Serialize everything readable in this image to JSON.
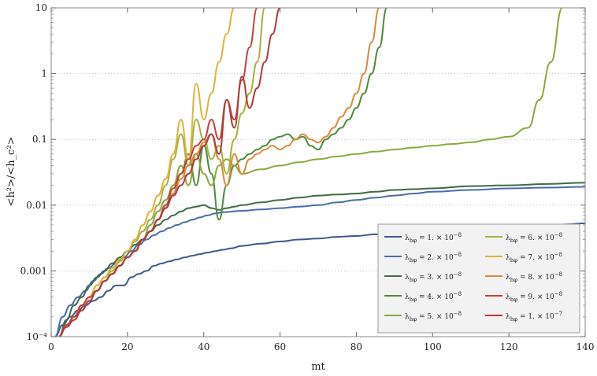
{
  "chart_data": {
    "type": "line",
    "title": "",
    "xlabel": "mt",
    "ylabel": "<h²>/<h_c²>",
    "xlim": [
      0,
      140
    ],
    "ylim": [
      0.0001,
      10
    ],
    "yscale": "log",
    "grid": "horizontal dotted at decades",
    "legend_position": "bottom-right",
    "x_ticks": [
      0,
      20,
      40,
      60,
      80,
      100,
      120,
      140
    ],
    "x_tick_labels": [
      "0",
      "20",
      "40",
      "60",
      "80",
      "100",
      "120",
      "140"
    ],
    "y_ticks": [
      0.0001,
      0.001,
      0.01,
      0.1,
      1,
      10
    ],
    "y_tick_labels": [
      "10⁻⁴",
      "0.001",
      "0.01",
      "0.1",
      "1",
      "10"
    ],
    "series": [
      {
        "name": "λ_hφ = 1. × 10⁻⁸",
        "label_main": "= 1. × 10",
        "label_exp": "−8",
        "color": "#3e5a8c",
        "x": [
          1,
          3,
          5,
          7,
          9,
          11,
          13,
          15,
          17,
          19,
          21,
          23,
          25,
          27,
          29,
          31,
          33,
          35,
          37,
          39,
          41,
          43,
          45,
          47,
          50,
          55,
          60,
          65,
          70,
          75,
          80,
          85,
          90,
          95,
          100,
          105,
          110,
          115,
          120,
          125,
          130,
          135,
          140
        ],
        "y": [
          0.0001,
          0.00015,
          0.0002,
          0.00025,
          0.0003,
          0.00035,
          0.0004,
          0.0005,
          0.0006,
          0.0006,
          0.0008,
          0.0009,
          0.001,
          0.0012,
          0.0013,
          0.0014,
          0.0015,
          0.0016,
          0.0017,
          0.0018,
          0.0019,
          0.002,
          0.0021,
          0.0022,
          0.0024,
          0.0026,
          0.0028,
          0.003,
          0.0031,
          0.0033,
          0.0034,
          0.0036,
          0.0037,
          0.0039,
          0.004,
          0.0042,
          0.0043,
          0.0045,
          0.0046,
          0.0048,
          0.0049,
          0.0051,
          0.0053
        ]
      },
      {
        "name": "λ_hφ = 2. × 10⁻⁸",
        "label_main": "= 2. × 10",
        "label_exp": "−8",
        "color": "#4a6da8",
        "x": [
          1,
          3,
          5,
          7,
          9,
          11,
          13,
          15,
          17,
          19,
          21,
          23,
          25,
          27,
          29,
          31,
          33,
          35,
          37,
          39,
          41,
          43,
          45,
          50,
          55,
          60,
          65,
          70,
          75,
          80,
          85,
          90,
          95,
          100,
          110,
          120,
          130,
          140
        ],
        "y": [
          0.0001,
          0.0002,
          0.0003,
          0.0004,
          0.0005,
          0.0007,
          0.0009,
          0.0011,
          0.0013,
          0.0016,
          0.002,
          0.0025,
          0.003,
          0.0035,
          0.004,
          0.0045,
          0.005,
          0.0055,
          0.006,
          0.0065,
          0.007,
          0.0075,
          0.0078,
          0.0082,
          0.0086,
          0.009,
          0.0095,
          0.01,
          0.011,
          0.012,
          0.013,
          0.014,
          0.015,
          0.016,
          0.017,
          0.018,
          0.0185,
          0.019
        ]
      },
      {
        "name": "λ_hφ = 3. × 10⁻⁸",
        "label_main": "= 3. × 10",
        "label_exp": "−8",
        "color": "#3f6a47",
        "x": [
          2,
          4,
          6,
          8,
          10,
          12,
          14,
          16,
          18,
          20,
          22,
          24,
          26,
          28,
          30,
          32,
          34,
          36,
          38,
          40,
          42,
          44,
          46,
          48,
          50,
          55,
          60,
          65,
          70,
          75,
          80,
          85,
          90,
          95,
          100,
          110,
          120,
          130,
          140
        ],
        "y": [
          0.0001,
          0.00018,
          0.0003,
          0.0004,
          0.0006,
          0.0008,
          0.001,
          0.0013,
          0.0016,
          0.002,
          0.0025,
          0.003,
          0.004,
          0.005,
          0.006,
          0.007,
          0.008,
          0.009,
          0.0095,
          0.01,
          0.009,
          0.0085,
          0.009,
          0.0095,
          0.01,
          0.011,
          0.012,
          0.013,
          0.014,
          0.0145,
          0.015,
          0.016,
          0.017,
          0.0175,
          0.018,
          0.0195,
          0.02,
          0.021,
          0.022
        ]
      },
      {
        "name": "λ_hφ = 4. × 10⁻⁸",
        "label_main": "= 4. × 10",
        "label_exp": "−8",
        "color": "#4e8a3e",
        "x": [
          2,
          4,
          6,
          8,
          10,
          12,
          14,
          16,
          18,
          20,
          22,
          24,
          26,
          28,
          30,
          32,
          34,
          36,
          38,
          40,
          42,
          44,
          46,
          48,
          50,
          52,
          54,
          56,
          58,
          60,
          62,
          64,
          66,
          68,
          70,
          72,
          74,
          76,
          78,
          80,
          82,
          84,
          86,
          88
        ],
        "y": [
          0.0001,
          0.00015,
          0.0002,
          0.0003,
          0.0004,
          0.0005,
          0.0007,
          0.0009,
          0.0012,
          0.0016,
          0.002,
          0.003,
          0.004,
          0.006,
          0.009,
          0.015,
          0.03,
          0.06,
          0.02,
          0.08,
          0.03,
          0.006,
          0.02,
          0.04,
          0.05,
          0.06,
          0.07,
          0.08,
          0.1,
          0.11,
          0.12,
          0.1,
          0.11,
          0.08,
          0.07,
          0.1,
          0.12,
          0.15,
          0.2,
          0.3,
          0.5,
          1.0,
          2.5,
          10
        ]
      },
      {
        "name": "λ_hφ = 5. × 10⁻⁸",
        "label_main": "= 5. × 10",
        "label_exp": "−8",
        "color": "#8aa83e",
        "x": [
          2,
          4,
          6,
          8,
          10,
          12,
          14,
          16,
          18,
          20,
          22,
          24,
          26,
          28,
          30,
          32,
          34,
          36,
          38,
          40,
          42,
          44,
          46,
          48,
          50,
          55,
          60,
          65,
          70,
          75,
          80,
          85,
          90,
          95,
          100,
          105,
          110,
          115,
          120,
          125,
          128,
          131,
          134
        ],
        "y": [
          0.0001,
          0.00015,
          0.0002,
          0.0003,
          0.0004,
          0.0005,
          0.0007,
          0.0009,
          0.0012,
          0.0016,
          0.002,
          0.003,
          0.005,
          0.008,
          0.012,
          0.02,
          0.04,
          0.02,
          0.06,
          0.03,
          0.02,
          0.04,
          0.05,
          0.04,
          0.03,
          0.035,
          0.04,
          0.045,
          0.05,
          0.055,
          0.06,
          0.065,
          0.07,
          0.075,
          0.08,
          0.085,
          0.09,
          0.1,
          0.11,
          0.15,
          0.4,
          1.5,
          10
        ]
      },
      {
        "name": "λ_hφ = 6. × 10⁻⁸",
        "label_main": "= 6. × 10",
        "label_exp": "−8",
        "color": "#a8b040",
        "x": [
          2,
          4,
          6,
          8,
          10,
          12,
          14,
          16,
          18,
          20,
          22,
          24,
          26,
          28,
          30,
          32,
          34,
          36,
          38,
          40,
          42,
          44,
          46,
          48,
          50,
          52,
          54,
          56
        ],
        "y": [
          0.0001,
          0.00015,
          0.0002,
          0.0003,
          0.0004,
          0.0006,
          0.0008,
          0.001,
          0.0014,
          0.002,
          0.0028,
          0.004,
          0.006,
          0.01,
          0.02,
          0.05,
          0.12,
          0.04,
          0.2,
          0.1,
          0.05,
          0.08,
          0.03,
          0.1,
          0.25,
          0.5,
          1.5,
          10
        ]
      },
      {
        "name": "λ_hφ = 7. × 10⁻⁸",
        "label_main": "= 7. × 10",
        "label_exp": "−8",
        "color": "#e0b23a",
        "x": [
          2,
          4,
          6,
          8,
          10,
          12,
          14,
          16,
          18,
          20,
          22,
          24,
          26,
          28,
          30,
          32,
          34,
          36,
          38,
          40,
          42,
          44,
          46,
          48
        ],
        "y": [
          0.0001,
          0.00015,
          0.0002,
          0.0003,
          0.0004,
          0.0006,
          0.0008,
          0.0011,
          0.0015,
          0.002,
          0.003,
          0.005,
          0.008,
          0.014,
          0.025,
          0.06,
          0.2,
          0.05,
          0.7,
          0.2,
          0.5,
          1.5,
          4,
          10
        ]
      },
      {
        "name": "λ_hφ = 8. × 10⁻⁸",
        "label_main": "= 8. × 10",
        "label_exp": "−8",
        "color": "#d98a3c",
        "x": [
          2,
          4,
          6,
          8,
          10,
          12,
          14,
          16,
          18,
          20,
          22,
          24,
          26,
          28,
          30,
          32,
          34,
          36,
          38,
          40,
          42,
          44,
          46,
          48,
          50,
          52,
          54,
          56,
          58,
          60,
          62,
          64,
          66,
          68,
          70,
          72,
          74,
          76,
          78,
          80,
          82,
          84,
          86
        ],
        "y": [
          0.0001,
          0.00015,
          0.0002,
          0.0003,
          0.0004,
          0.0005,
          0.0007,
          0.0009,
          0.0012,
          0.0016,
          0.002,
          0.003,
          0.004,
          0.006,
          0.01,
          0.015,
          0.025,
          0.04,
          0.06,
          0.09,
          0.12,
          0.05,
          0.02,
          0.06,
          0.03,
          0.05,
          0.06,
          0.07,
          0.08,
          0.07,
          0.08,
          0.1,
          0.12,
          0.1,
          0.09,
          0.11,
          0.15,
          0.22,
          0.3,
          0.5,
          1.0,
          3.0,
          10
        ]
      },
      {
        "name": "λ_hφ = 9. × 10⁻⁸",
        "label_main": "= 9. × 10",
        "label_exp": "−8",
        "color": "#c8413a",
        "x": [
          2,
          4,
          6,
          8,
          10,
          12,
          14,
          16,
          18,
          20,
          22,
          24,
          26,
          28,
          30,
          32,
          34,
          36,
          38,
          40,
          42,
          44,
          46,
          48,
          50,
          52,
          54
        ],
        "y": [
          0.0001,
          0.00015,
          0.0002,
          0.0003,
          0.0004,
          0.0005,
          0.0007,
          0.0009,
          0.0012,
          0.0016,
          0.002,
          0.003,
          0.004,
          0.006,
          0.01,
          0.018,
          0.03,
          0.05,
          0.08,
          0.1,
          0.2,
          0.1,
          0.4,
          0.2,
          0.8,
          2.5,
          10
        ]
      },
      {
        "name": "λ_hφ = 1. × 10⁻⁷",
        "label_main": "= 1. × 10",
        "label_exp": "−7",
        "color": "#b23a3a",
        "x": [
          2,
          4,
          6,
          8,
          10,
          12,
          14,
          16,
          18,
          20,
          22,
          24,
          26,
          28,
          30,
          32,
          34,
          36,
          38,
          40,
          42,
          44,
          46,
          48,
          50,
          52,
          54,
          56,
          58,
          60
        ],
        "y": [
          0.0001,
          0.00014,
          0.00018,
          0.00025,
          0.00035,
          0.0005,
          0.0007,
          0.0009,
          0.0012,
          0.0016,
          0.002,
          0.003,
          0.004,
          0.006,
          0.009,
          0.014,
          0.02,
          0.03,
          0.05,
          0.08,
          0.12,
          0.06,
          0.4,
          0.15,
          0.9,
          0.3,
          0.6,
          1.5,
          4,
          10
        ]
      }
    ]
  }
}
